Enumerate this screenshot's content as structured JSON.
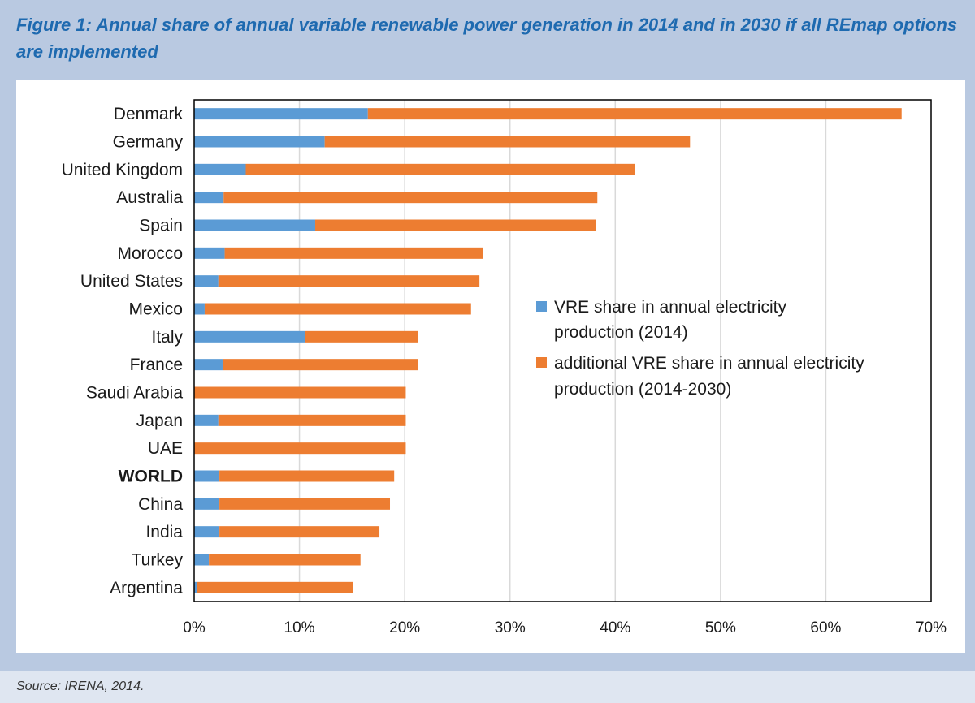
{
  "figure": {
    "title": "Figure 1: Annual share of annual variable renewable power generation in 2014 and in 2030 if all REmap options are implemented",
    "source": "Source: IRENA, 2014."
  },
  "colors": {
    "series_2014": "#5b9bd5",
    "series_additional": "#ed7d31",
    "gridline": "#d9d9d9"
  },
  "chart_data": {
    "type": "bar",
    "orientation": "horizontal",
    "stacked": true,
    "title": "",
    "xlabel": "",
    "ylabel": "",
    "xlim": [
      0,
      0.7
    ],
    "xticks": [
      0,
      0.1,
      0.2,
      0.3,
      0.4,
      0.5,
      0.6,
      0.7
    ],
    "xtick_labels": [
      "0%",
      "10%",
      "20%",
      "30%",
      "40%",
      "50%",
      "60%",
      "70%"
    ],
    "grid": true,
    "legend_position": "center-right",
    "categories": [
      "Denmark",
      "Germany",
      "United Kingdom",
      "Australia",
      "Spain",
      "Morocco",
      "United States",
      "Mexico",
      "Italy",
      "France",
      "Saudi Arabia",
      "Japan",
      "UAE",
      "WORLD",
      "China",
      "India",
      "Turkey",
      "Argentina"
    ],
    "bold_categories": [
      "WORLD"
    ],
    "series": [
      {
        "name": "VRE share in annual electricity production (2014)",
        "legend_lines": [
          "VRE share in annual electricity",
          "production (2014)"
        ],
        "values": [
          0.165,
          0.124,
          0.049,
          0.028,
          0.115,
          0.029,
          0.023,
          0.01,
          0.105,
          0.027,
          0.0,
          0.023,
          0.0,
          0.024,
          0.024,
          0.024,
          0.014,
          0.003
        ]
      },
      {
        "name": "additional VRE share in annual electricity production (2014-2030)",
        "legend_lines": [
          "additional VRE share in annual electricity",
          "production (2014-2030)"
        ],
        "values": [
          0.507,
          0.347,
          0.37,
          0.355,
          0.267,
          0.245,
          0.248,
          0.253,
          0.108,
          0.186,
          0.201,
          0.178,
          0.201,
          0.166,
          0.162,
          0.152,
          0.144,
          0.148
        ]
      }
    ]
  }
}
